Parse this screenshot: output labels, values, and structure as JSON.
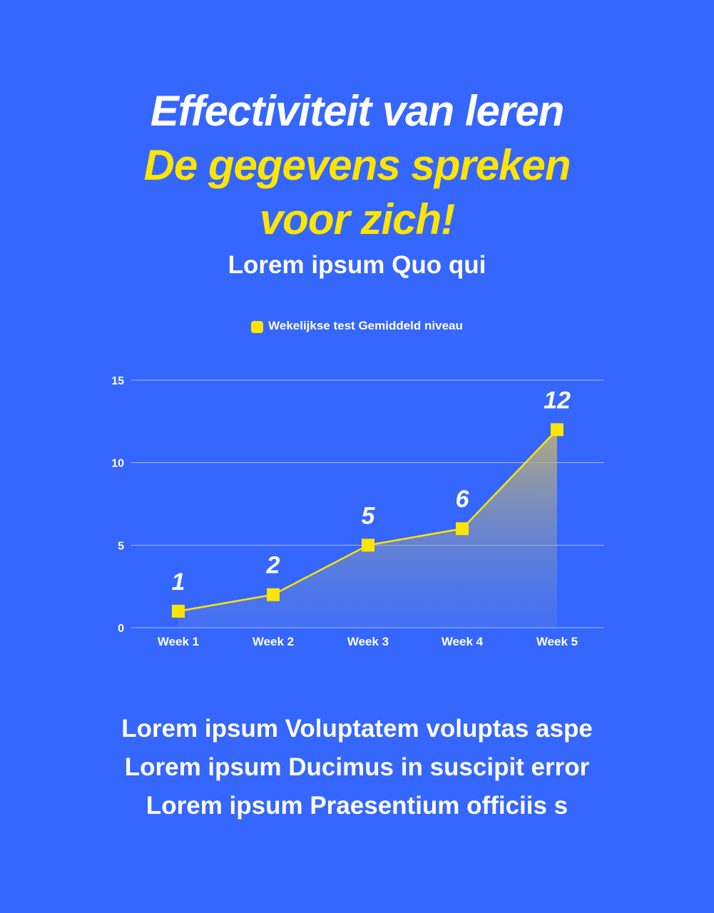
{
  "header": {
    "title_line1": "Effectiviteit van leren",
    "title_line2": "De gegevens spreken",
    "title_line3": "voor zich!",
    "subtitle": "Lorem ipsum Quo qui"
  },
  "legend": {
    "label": "Wekelijkse test Gemiddeld niveau",
    "color": "#ffe500"
  },
  "footer": {
    "lines": [
      "Lorem ipsum Voluptatem voluptas aspe",
      "Lorem ipsum Ducimus in suscipit error",
      "Lorem ipsum Praesentium officiis s"
    ]
  },
  "colors": {
    "background": "#3566fe",
    "accent": "#ffe500",
    "text": "#ffffff"
  },
  "chart_data": {
    "type": "area",
    "title": "",
    "xlabel": "",
    "ylabel": "",
    "categories": [
      "Week 1",
      "Week 2",
      "Week 3",
      "Week 4",
      "Week 5"
    ],
    "series": [
      {
        "name": "Wekelijkse test Gemiddeld niveau",
        "values": [
          1,
          2,
          5,
          6,
          12
        ]
      }
    ],
    "data_labels": [
      "1",
      "2",
      "5",
      "6",
      "12"
    ],
    "y_ticks": [
      "0",
      "5",
      "10",
      "15"
    ],
    "ylim": [
      0,
      15
    ],
    "grid": true,
    "legend_position": "top"
  }
}
